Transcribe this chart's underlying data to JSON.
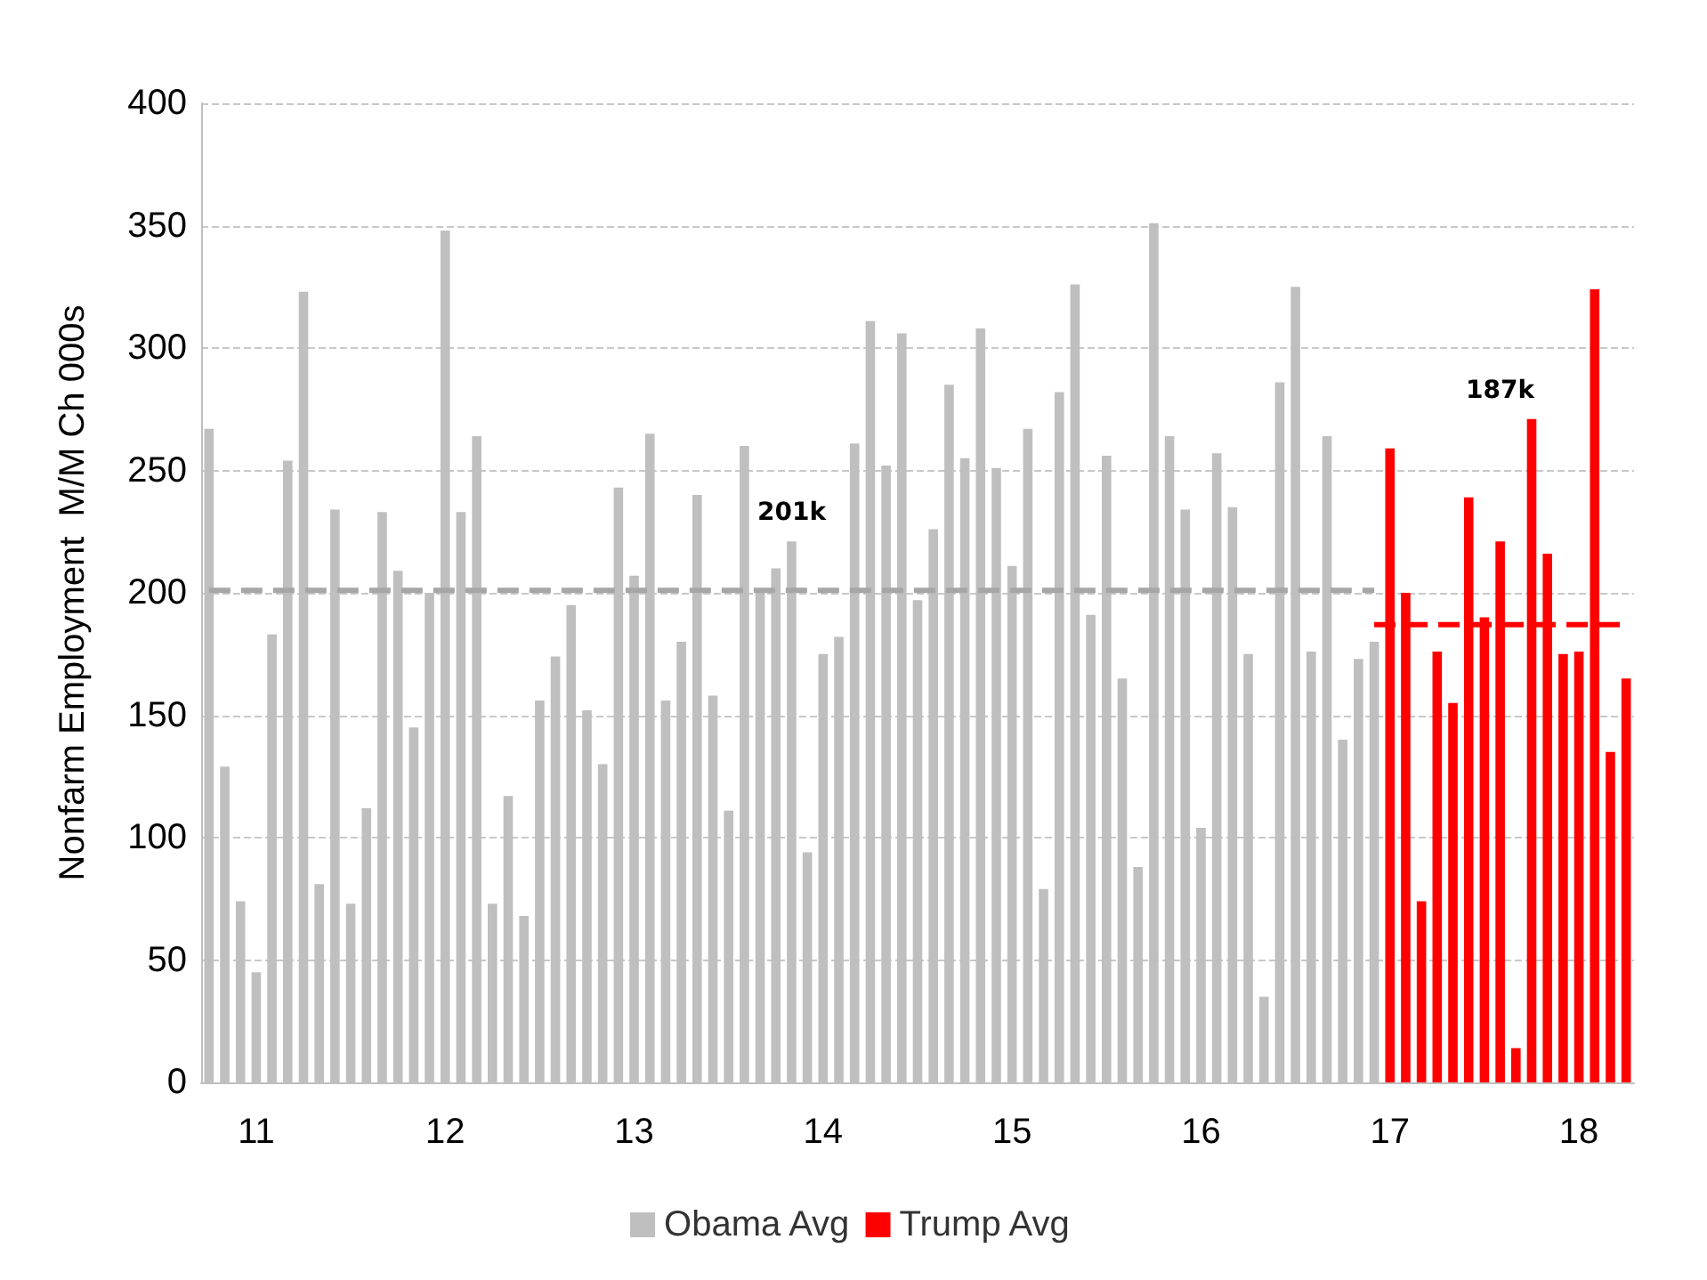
{
  "chart_data": {
    "type": "bar",
    "ylabel": "Nonfarm Employment  M/M Ch 000s",
    "categories": [
      null,
      null,
      null,
      "11",
      null,
      null,
      null,
      null,
      null,
      null,
      null,
      null,
      null,
      null,
      null,
      "12",
      null,
      null,
      null,
      null,
      null,
      null,
      null,
      null,
      null,
      null,
      null,
      "13",
      null,
      null,
      null,
      null,
      null,
      null,
      null,
      null,
      null,
      null,
      null,
      "14",
      null,
      null,
      null,
      null,
      null,
      null,
      null,
      null,
      null,
      null,
      null,
      "15",
      null,
      null,
      null,
      null,
      null,
      null,
      null,
      null,
      null,
      null,
      null,
      "16",
      null,
      null,
      null,
      null,
      null,
      null,
      null,
      null,
      null,
      null,
      null,
      "17",
      null,
      null,
      null,
      null,
      null,
      null,
      null,
      null,
      null,
      null,
      null,
      "18",
      null,
      null,
      null
    ],
    "series": [
      {
        "name": "Obama Avg",
        "color": "#bfbfbf",
        "values": [
          267,
          129,
          74,
          45,
          183,
          254,
          323,
          81,
          234,
          73,
          112,
          233,
          209,
          145,
          200,
          348,
          233,
          264,
          73,
          117,
          68,
          156,
          174,
          195,
          152,
          130,
          243,
          207,
          265,
          156,
          180,
          240,
          158,
          111,
          260,
          201,
          210,
          221,
          94,
          175,
          182,
          261,
          311,
          252,
          306,
          197,
          226,
          285,
          255,
          308,
          251,
          211,
          267,
          79,
          282,
          326,
          191,
          256,
          165,
          88,
          351,
          264,
          234,
          104,
          257,
          235,
          175,
          35,
          286,
          325,
          176,
          264,
          140,
          173,
          180,
          null,
          null,
          null,
          null,
          null,
          null,
          null,
          null,
          null,
          null,
          null,
          null,
          null,
          null,
          null,
          null
        ]
      },
      {
        "name": "Trump Avg",
        "color": "#ff0000",
        "values": [
          null,
          null,
          null,
          null,
          null,
          null,
          null,
          null,
          null,
          null,
          null,
          null,
          null,
          null,
          null,
          null,
          null,
          null,
          null,
          null,
          null,
          null,
          null,
          null,
          null,
          null,
          null,
          null,
          null,
          null,
          null,
          null,
          null,
          null,
          null,
          null,
          null,
          null,
          null,
          null,
          null,
          null,
          null,
          null,
          null,
          null,
          null,
          null,
          null,
          null,
          null,
          null,
          null,
          null,
          null,
          null,
          null,
          null,
          null,
          null,
          null,
          null,
          null,
          null,
          null,
          null,
          null,
          null,
          null,
          null,
          null,
          null,
          null,
          null,
          null,
          259,
          200,
          74,
          176,
          155,
          239,
          190,
          221,
          14,
          271,
          216,
          175,
          176,
          324,
          135,
          165
        ]
      },
      {
        "type": "line",
        "color": "#a6a6a6",
        "line_style": "dashed",
        "values": [
          201,
          201,
          201,
          201,
          201,
          201,
          201,
          201,
          201,
          201,
          201,
          201,
          201,
          201,
          201,
          201,
          201,
          201,
          201,
          201,
          201,
          201,
          201,
          201,
          201,
          201,
          201,
          201,
          201,
          201,
          201,
          201,
          201,
          201,
          201,
          201,
          201,
          201,
          201,
          201,
          201,
          201,
          201,
          201,
          201,
          201,
          201,
          201,
          201,
          201,
          201,
          201,
          201,
          201,
          201,
          201,
          201,
          201,
          201,
          201,
          201,
          201,
          201,
          201,
          201,
          201,
          201,
          201,
          201,
          201,
          201,
          201,
          201,
          201,
          201,
          null,
          null,
          null,
          null,
          null,
          null,
          null,
          null,
          null,
          null,
          null,
          null,
          null,
          null,
          null,
          null
        ]
      },
      {
        "type": "line",
        "color": "#ff0000",
        "line_style": "dashed",
        "values": [
          null,
          null,
          null,
          null,
          null,
          null,
          null,
          null,
          null,
          null,
          null,
          null,
          null,
          null,
          null,
          null,
          null,
          null,
          null,
          null,
          null,
          null,
          null,
          null,
          null,
          null,
          null,
          null,
          null,
          null,
          null,
          null,
          null,
          null,
          null,
          null,
          null,
          null,
          null,
          null,
          null,
          null,
          null,
          null,
          null,
          null,
          null,
          null,
          null,
          null,
          null,
          null,
          null,
          null,
          null,
          null,
          null,
          null,
          null,
          null,
          null,
          null,
          null,
          null,
          null,
          null,
          null,
          null,
          null,
          null,
          null,
          null,
          null,
          null,
          187,
          187,
          187,
          187,
          187,
          187,
          187,
          187,
          187,
          187,
          187,
          187,
          187,
          187,
          187,
          187,
          187
        ]
      }
    ],
    "annotations": [
      "201k",
      "187k"
    ],
    "ylim": [
      0,
      400
    ],
    "yticks": [
      0,
      50,
      100,
      150,
      200,
      250,
      300,
      350,
      400
    ],
    "grid": "y",
    "legend": "bottom",
    "marker": "none"
  }
}
